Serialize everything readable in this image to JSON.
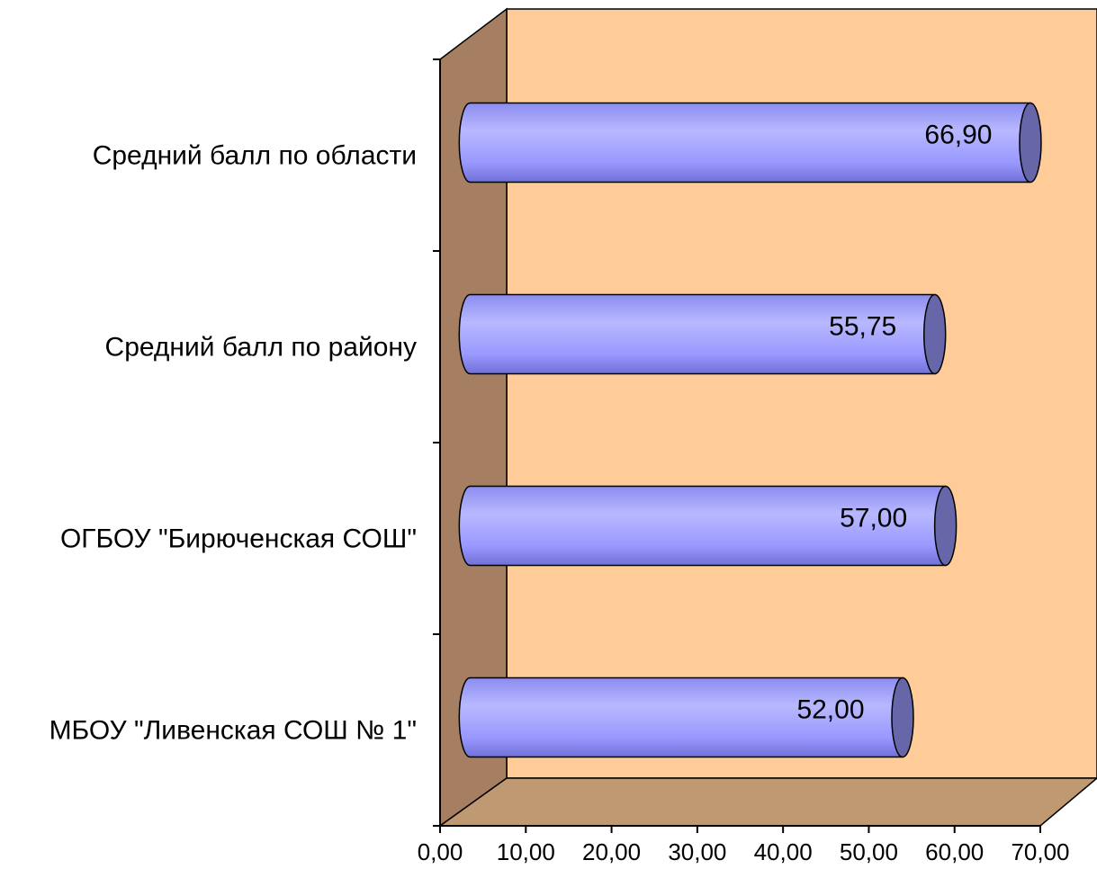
{
  "chart_data": {
    "type": "bar",
    "orientation": "horizontal",
    "style": "3d-cylinder",
    "title": "",
    "xlabel": "",
    "ylabel": "",
    "categories": [
      "Средний балл по области",
      "Средний балл по району",
      "ОГБОУ \"Бирюченская СОШ\"",
      "МБОУ \"Ливенская  СОШ № 1\""
    ],
    "values": [
      66.9,
      55.75,
      57.0,
      52.0
    ],
    "value_labels": [
      "66,90",
      "55,75",
      "57,00",
      "52,00"
    ],
    "xlim": [
      0,
      70
    ],
    "ticks": [
      "0,00",
      "10,00",
      "20,00",
      "30,00",
      "40,00",
      "50,00",
      "60,00",
      "70,00"
    ],
    "grid": false,
    "legend": "none",
    "colors": {
      "wall": "#FFCC99",
      "side_wall": "#A67F63",
      "floor": "#BF9972",
      "bar": "#9999FF",
      "bar_highlight": "#B8B8FF",
      "bar_end": "#6666A8"
    }
  }
}
